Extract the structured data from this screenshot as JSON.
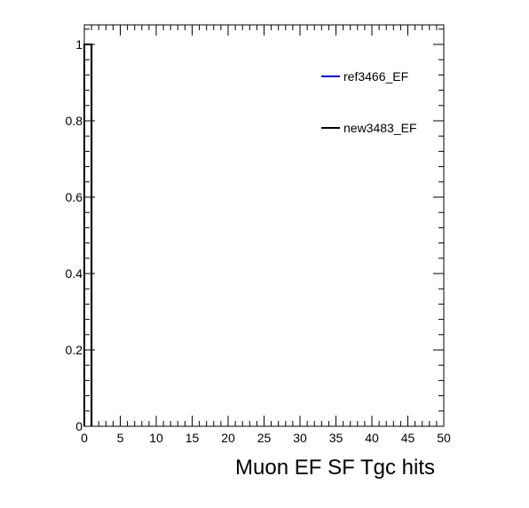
{
  "chart_data": {
    "type": "line",
    "title": "",
    "xlabel": "Muon EF SF Tgc hits",
    "ylabel": "",
    "xlim": [
      0,
      50
    ],
    "ylim": [
      0,
      1.05
    ],
    "x_ticks": [
      0,
      5,
      10,
      15,
      20,
      25,
      30,
      35,
      40,
      45,
      50
    ],
    "y_ticks": [
      0,
      0.2,
      0.4,
      0.6,
      0.8,
      1
    ],
    "x_tick_labels": [
      "0",
      "5",
      "10",
      "15",
      "20",
      "25",
      "30",
      "35",
      "40",
      "45",
      "50"
    ],
    "y_tick_labels": [
      "0",
      "0.2",
      "0.4",
      "0.6",
      "0.8",
      "1"
    ],
    "legend_position": "top-right",
    "grid": false,
    "series": [
      {
        "name": "ref3466_EF",
        "color": "#0000cc",
        "bins": [
          {
            "x0": 0,
            "x1": 1,
            "y": 1
          }
        ]
      },
      {
        "name": "new3483_EF",
        "color": "#000000",
        "bins": [
          {
            "x0": 0,
            "x1": 1,
            "y": 1
          }
        ]
      }
    ]
  }
}
